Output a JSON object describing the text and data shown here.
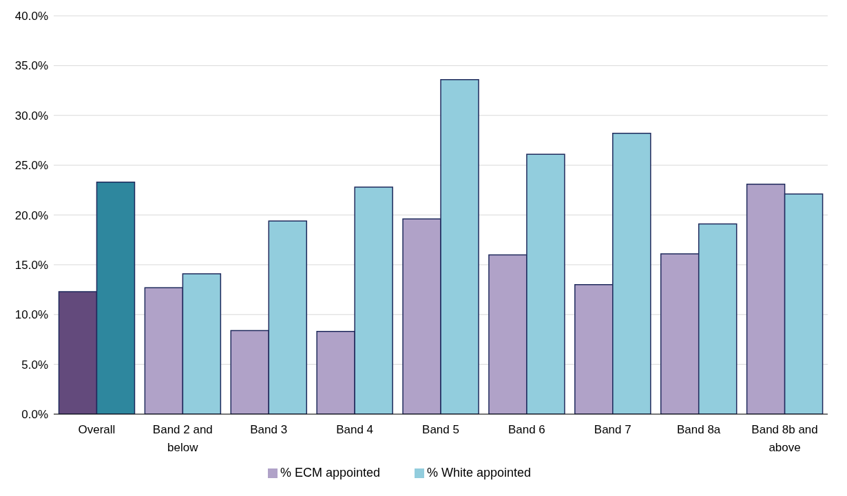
{
  "chart_data": {
    "type": "bar",
    "categories": [
      "Overall",
      "Band 2 and below",
      "Band 3",
      "Band 4",
      "Band 5",
      "Band 6",
      "Band 7",
      "Band 8a",
      "Band 8b and above"
    ],
    "series": [
      {
        "name": "% ECM appointed",
        "color": "#b0a2c8",
        "colors": [
          "#634a7c",
          "#b0a2c8",
          "#b0a2c8",
          "#b0a2c8",
          "#b0a2c8",
          "#b0a2c8",
          "#b0a2c8",
          "#b0a2c8",
          "#b0a2c8"
        ],
        "values": [
          12.3,
          12.7,
          8.4,
          8.3,
          19.6,
          16.0,
          13.0,
          16.1,
          23.1
        ]
      },
      {
        "name": "% White appointed",
        "color": "#92cddd",
        "colors": [
          "#2e879e",
          "#92cddd",
          "#92cddd",
          "#92cddd",
          "#92cddd",
          "#92cddd",
          "#92cddd",
          "#92cddd",
          "#92cddd"
        ],
        "values": [
          23.3,
          14.1,
          19.4,
          22.8,
          33.6,
          26.1,
          28.2,
          19.1,
          22.1
        ]
      }
    ],
    "ylim": [
      0,
      40
    ],
    "yticks": [
      {
        "value": 0,
        "label": "0.0%"
      },
      {
        "value": 5,
        "label": "5.0%"
      },
      {
        "value": 10,
        "label": "10.0%"
      },
      {
        "value": 15,
        "label": "15.0%"
      },
      {
        "value": 20,
        "label": "20.0%"
      },
      {
        "value": 25,
        "label": "25.0%"
      },
      {
        "value": 30,
        "label": "30.0%"
      },
      {
        "value": 35,
        "label": "35.0%"
      },
      {
        "value": 40,
        "label": "40.0%"
      }
    ],
    "grid": "y",
    "legend": "bottom"
  }
}
